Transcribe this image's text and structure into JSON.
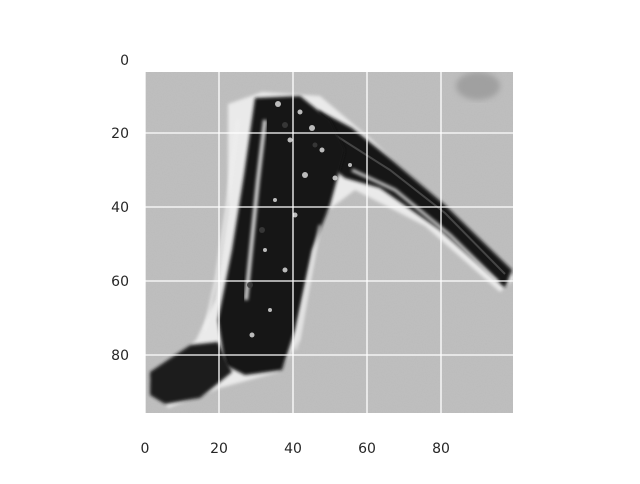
{
  "figure": {
    "x_ticks": [
      "0",
      "20",
      "40",
      "60",
      "80"
    ],
    "y_ticks": [
      "0",
      "20",
      "40",
      "60",
      "80"
    ],
    "grid": true,
    "background_color": "#ffffff",
    "grid_color": "#ffffff",
    "image_tone": "grayscale",
    "image_content": "microscopy image of an elongated dark cell with bright halo outlines, one arm extending diagonally to the lower right"
  }
}
